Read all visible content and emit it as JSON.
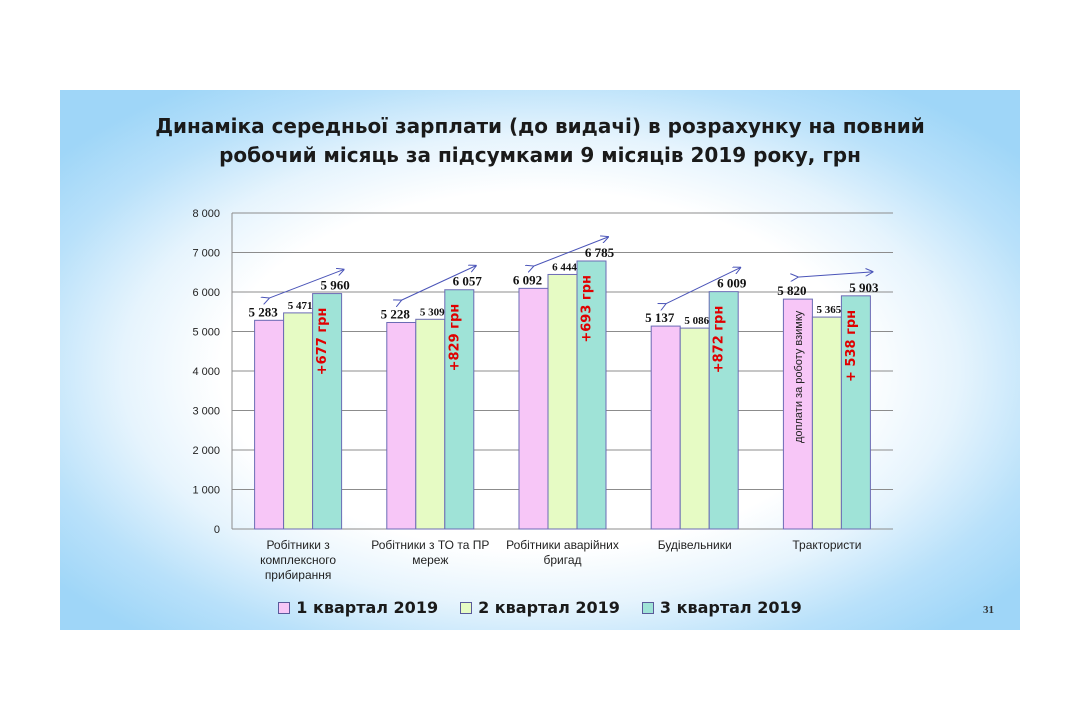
{
  "slide": {
    "page_number": "31"
  },
  "chart_data": {
    "type": "bar",
    "title": "Динаміка середньої зарплати (до видачі) в розрахунку на повний робочий місяць за підсумками 9 місяців 2019 року, грн",
    "categories": [
      "Робітники з комплексного прибирання",
      "Робітники з ТО та ПР мереж",
      "Робітники аварійних бригад",
      "Будівельники",
      "Трактористи"
    ],
    "category_lines": [
      [
        "Робітники з",
        "комплексного",
        "прибирання"
      ],
      [
        "Робітники з ТО та ПР",
        "мереж"
      ],
      [
        "Робітники аварійних",
        "бригад"
      ],
      [
        "Будівельники"
      ],
      [
        "Трактористи"
      ]
    ],
    "series": [
      {
        "name": "1 квартал 2019",
        "values": [
          5283,
          5228,
          6092,
          5137,
          5820
        ],
        "color": "#f7c6f7"
      },
      {
        "name": "2 квартал 2019",
        "values": [
          5471,
          5309,
          6444,
          5086,
          5365
        ],
        "color": "#e6fbc4"
      },
      {
        "name": "3 квартал 2019",
        "values": [
          5960,
          6057,
          6785,
          6009,
          5903
        ],
        "color": "#9fe3d7"
      }
    ],
    "value_labels": [
      [
        "5 283",
        "5 471",
        "5 960"
      ],
      [
        "5 228",
        "5 309",
        "6 057"
      ],
      [
        "6 092",
        "6 444",
        "6 785"
      ],
      [
        "5 137",
        "5 086",
        "6 009"
      ],
      [
        "5 820",
        "5 365",
        "5 903"
      ]
    ],
    "deltas": [
      "+677 грн",
      "+829 грн",
      "+693 грн",
      "+872 грн",
      "+ 538 грн"
    ],
    "annotation": "доплати за роботу взимку",
    "yticks": [
      "0",
      "1 000",
      "2 000",
      "3 000",
      "4 000",
      "5 000",
      "6 000",
      "7 000",
      "8 000"
    ],
    "ylim": [
      0,
      8000
    ],
    "xlabel": "",
    "ylabel": "",
    "grid": true,
    "legend_position": "bottom"
  }
}
